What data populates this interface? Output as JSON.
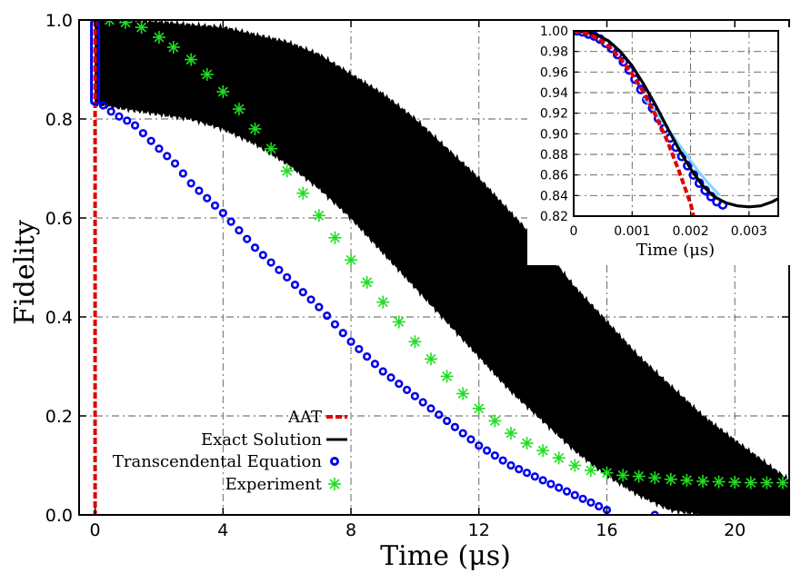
{
  "chart_data": [
    {
      "name": "main",
      "type": "line",
      "xlabel": "Time (μs)",
      "ylabel": "Fidelity",
      "xlim": [
        -0.5,
        21.7
      ],
      "ylim": [
        0,
        1
      ],
      "xticks": [
        0,
        4,
        8,
        12,
        16,
        20
      ],
      "xtick_labels": [
        "0",
        "4",
        "8",
        "12",
        "16",
        "20"
      ],
      "yticks": [
        0,
        0.2,
        0.4,
        0.6,
        0.8,
        1.0
      ],
      "ytick_labels": [
        "0.0",
        "0.2",
        "0.4",
        "0.6",
        "0.8",
        "1.0"
      ],
      "grid": true,
      "legend_position": "bottom-left",
      "series": [
        {
          "name": "AAT",
          "style": "dashed-line",
          "color": "#e00000",
          "x": [
            0,
            0.001,
            0.0015,
            0.002,
            0.05
          ],
          "y": [
            1.0,
            0.97,
            0.93,
            0.82,
            0.0
          ]
        },
        {
          "name": "Exact Solution",
          "style": "oscillating-band",
          "color": "#000000",
          "band_x": [
            0,
            1,
            2,
            3,
            4,
            5,
            6,
            7,
            8,
            9,
            10,
            11,
            12,
            13,
            14,
            15,
            16,
            17,
            18,
            19,
            20,
            21.7
          ],
          "band_upper": [
            1.0,
            0.998,
            0.996,
            0.99,
            0.985,
            0.97,
            0.955,
            0.93,
            0.89,
            0.85,
            0.8,
            0.74,
            0.68,
            0.61,
            0.54,
            0.46,
            0.39,
            0.32,
            0.26,
            0.2,
            0.15,
            0.07
          ],
          "band_lower": [
            0.83,
            0.82,
            0.81,
            0.8,
            0.78,
            0.75,
            0.71,
            0.66,
            0.6,
            0.53,
            0.46,
            0.39,
            0.32,
            0.25,
            0.19,
            0.13,
            0.08,
            0.04,
            0.01,
            0.0,
            0.0,
            0.0
          ]
        },
        {
          "name": "Transcendental Equation",
          "style": "open-circles",
          "color": "#0000ee",
          "x": [
            0.6,
            1.2,
            2,
            2.5,
            3,
            4,
            5,
            6,
            7,
            8,
            9,
            10,
            11,
            12,
            13,
            14,
            15,
            16,
            17.5
          ],
          "y": [
            0.81,
            0.79,
            0.74,
            0.71,
            0.67,
            0.61,
            0.54,
            0.48,
            0.42,
            0.35,
            0.29,
            0.24,
            0.19,
            0.14,
            0.1,
            0.07,
            0.04,
            0.01,
            0.0
          ]
        },
        {
          "name": "Experiment",
          "style": "asterisk-markers",
          "color": "#22dd22",
          "x": [
            0.45,
            0.95,
            1.45,
            2.0,
            2.45,
            3.0,
            3.5,
            4.0,
            4.5,
            5.0,
            5.5,
            6.0,
            6.5,
            7.0,
            7.5,
            8.0,
            8.5,
            9.0,
            9.5,
            10.0,
            10.5,
            11.0,
            11.5,
            12.0,
            12.5,
            13.0,
            13.5,
            14.0,
            14.5,
            15.0,
            15.5,
            16.0,
            16.5,
            17.0,
            17.5,
            18.0,
            18.5,
            19.0,
            19.5,
            20.0,
            20.5,
            21.0,
            21.5
          ],
          "y": [
            1.0,
            0.995,
            0.985,
            0.965,
            0.945,
            0.92,
            0.89,
            0.855,
            0.82,
            0.78,
            0.74,
            0.695,
            0.65,
            0.605,
            0.56,
            0.515,
            0.47,
            0.43,
            0.39,
            0.35,
            0.315,
            0.28,
            0.245,
            0.215,
            0.19,
            0.165,
            0.145,
            0.13,
            0.115,
            0.1,
            0.09,
            0.085,
            0.08,
            0.078,
            0.075,
            0.072,
            0.07,
            0.068,
            0.067,
            0.066,
            0.065,
            0.065,
            0.065
          ]
        }
      ],
      "legend": [
        "AAT",
        "Exact Solution",
        "Transcendental Equation",
        "Experiment"
      ]
    },
    {
      "name": "inset",
      "type": "line",
      "xlabel": "Time (μs)",
      "ylabel": "",
      "xlim": [
        0,
        0.0035
      ],
      "ylim": [
        0.82,
        1.0
      ],
      "xticks": [
        0,
        0.001,
        0.002,
        0.003
      ],
      "xtick_labels": [
        "0",
        "0.001",
        "0.002",
        "0.003"
      ],
      "yticks": [
        0.82,
        0.84,
        0.86,
        0.88,
        0.9,
        0.92,
        0.94,
        0.96,
        0.98,
        1.0
      ],
      "ytick_labels": [
        "0.82",
        "0.84",
        "0.86",
        "0.88",
        "0.90",
        "0.92",
        "0.94",
        "0.96",
        "0.98",
        "1.00"
      ],
      "grid": true,
      "series": [
        {
          "name": "Exact Solution",
          "color": "#000000",
          "x": [
            0,
            0.0002,
            0.0004,
            0.0006,
            0.0008,
            0.001,
            0.0012,
            0.0014,
            0.0016,
            0.0018,
            0.002,
            0.0022,
            0.0024,
            0.0026,
            0.0028,
            0.003,
            0.0032,
            0.0034,
            0.0035
          ],
          "y": [
            1.0,
            0.999,
            0.996,
            0.99,
            0.98,
            0.966,
            0.948,
            0.928,
            0.906,
            0.885,
            0.866,
            0.85,
            0.839,
            0.833,
            0.83,
            0.829,
            0.83,
            0.834,
            0.837
          ]
        },
        {
          "name": "AAT",
          "color": "#e00000",
          "x": [
            0,
            0.0002,
            0.0004,
            0.0006,
            0.0008,
            0.001,
            0.0012,
            0.0014,
            0.0016,
            0.0018,
            0.002,
            0.00205
          ],
          "y": [
            1.0,
            0.998,
            0.993,
            0.985,
            0.973,
            0.958,
            0.94,
            0.918,
            0.893,
            0.864,
            0.832,
            0.82
          ]
        },
        {
          "name": "Transcendental Equation",
          "color": "#0000ee",
          "x": [
            5e-05,
            0.00015,
            0.00025,
            0.00035,
            0.00045,
            0.00055,
            0.00065,
            0.00075,
            0.00085,
            0.00095,
            0.00105,
            0.00115,
            0.00125,
            0.00135,
            0.00145,
            0.00155,
            0.00165,
            0.00175,
            0.00185,
            0.00195,
            0.00205,
            0.00215,
            0.00225,
            0.00235,
            0.00245,
            0.00255
          ],
          "y": [
            1.0,
            0.999,
            0.997,
            0.995,
            0.992,
            0.988,
            0.983,
            0.977,
            0.97,
            0.962,
            0.953,
            0.943,
            0.933,
            0.925,
            0.915,
            0.905,
            0.896,
            0.887,
            0.878,
            0.869,
            0.86,
            0.852,
            0.845,
            0.839,
            0.834,
            0.831
          ]
        },
        {
          "name": "Experiment",
          "color": "#7fd8ff",
          "x": [
            0.0012,
            0.0013,
            0.0014,
            0.0015,
            0.0016,
            0.0017,
            0.0018,
            0.0019,
            0.002,
            0.0021,
            0.0022,
            0.0023,
            0.0024,
            0.0025
          ],
          "y": [
            0.935,
            0.928,
            0.921,
            0.914,
            0.906,
            0.898,
            0.89,
            0.882,
            0.874,
            0.866,
            0.859,
            0.852,
            0.846,
            0.84
          ]
        }
      ]
    }
  ],
  "colors": {
    "aat": "#e00000",
    "exact": "#000000",
    "transcendental": "#0000ee",
    "experiment": "#22dd22",
    "inset_experiment": "#7fd8ff"
  }
}
